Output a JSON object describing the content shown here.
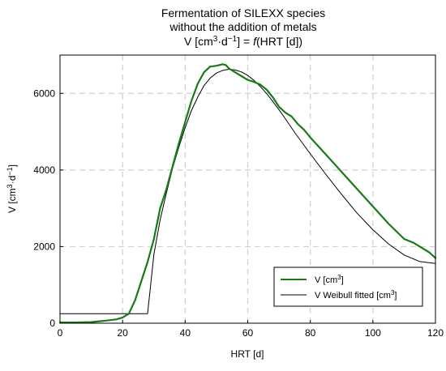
{
  "chart_data": {
    "type": "line",
    "title": [
      "Fermentation of SILEXX species",
      "without the addition of metals"
    ],
    "title_formula": {
      "prefix": "V [cm",
      "sup1": "3",
      "mid": "·d",
      "sup2": "−1",
      "suffix": "] = ",
      "func": "f",
      "tail": "(HRT [d])"
    },
    "xlabel": "HRT [d]",
    "ylabel": {
      "prefix": "V [cm",
      "sup1": "3",
      "mid": "·d",
      "sup2": "−1",
      "suffix": "]"
    },
    "xlim": [
      0,
      120
    ],
    "ylim": [
      0,
      7000
    ],
    "xticks": [
      0,
      20,
      40,
      60,
      80,
      100,
      120
    ],
    "yticks": [
      0,
      2000,
      4000,
      6000
    ],
    "grid": true,
    "legend_position": "lower-right",
    "series": [
      {
        "name": "V [cm",
        "name_sup": "3",
        "name_suffix": "]",
        "color": "#1a7a1a",
        "x": [
          0,
          5,
          10,
          15,
          18,
          20,
          22,
          24,
          26,
          28,
          30,
          32,
          34,
          36,
          38,
          40,
          42,
          44,
          46,
          48,
          50,
          52,
          53,
          54,
          56,
          58,
          60,
          62,
          64,
          66,
          68,
          70,
          72,
          74,
          76,
          78,
          80,
          85,
          90,
          95,
          100,
          105,
          110,
          113,
          115,
          118,
          120
        ],
        "y": [
          20,
          20,
          30,
          70,
          100,
          150,
          250,
          600,
          1100,
          1600,
          2200,
          3000,
          3500,
          4100,
          4700,
          5250,
          5800,
          6250,
          6550,
          6700,
          6720,
          6760,
          6740,
          6650,
          6550,
          6450,
          6350,
          6300,
          6230,
          6100,
          5900,
          5650,
          5500,
          5400,
          5200,
          5050,
          4850,
          4400,
          3950,
          3500,
          3050,
          2600,
          2200,
          2100,
          2000,
          1850,
          1700
        ]
      },
      {
        "name": "V Weibull fitted [cm",
        "name_sup": "3",
        "name_suffix": "]",
        "color": "#000000",
        "x": [
          0,
          27.9,
          28,
          30,
          32,
          34,
          36,
          38,
          40,
          42,
          44,
          46,
          48,
          50,
          52,
          54,
          55,
          56,
          58,
          60,
          62,
          64,
          66,
          68,
          70,
          72,
          75,
          80,
          85,
          90,
          95,
          100,
          105,
          110,
          115,
          120
        ],
        "y": [
          250,
          250,
          250,
          1800,
          2700,
          3400,
          4050,
          4600,
          5100,
          5550,
          5900,
          6200,
          6400,
          6530,
          6600,
          6630,
          6620,
          6610,
          6560,
          6470,
          6340,
          6180,
          6000,
          5790,
          5570,
          5340,
          4980,
          4420,
          3880,
          3360,
          2870,
          2440,
          2070,
          1780,
          1610,
          1560
        ]
      }
    ]
  }
}
